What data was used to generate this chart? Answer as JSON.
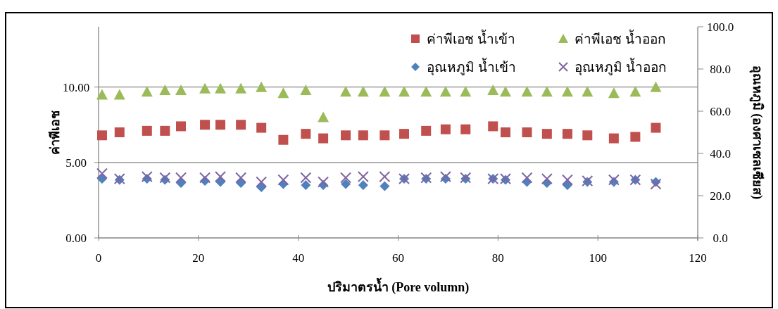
{
  "chart_data": {
    "type": "scatter",
    "xlabel": "ปริมาตรน้ำ (Pore volumn)",
    "ylabel": "ค่าพีเอช",
    "y2label": "อุณหภูมิ (องศาเซลเซียส)",
    "x": [
      0.7,
      4.2,
      9.7,
      13.3,
      16.5,
      21.3,
      24.4,
      28.5,
      32.6,
      37.0,
      41.5,
      45.0,
      49.5,
      53.0,
      57.3,
      61.2,
      65.6,
      69.5,
      73.5,
      79.0,
      81.5,
      85.8,
      89.8,
      93.9,
      97.9,
      103.2,
      107.5,
      111.6
    ],
    "xlim": [
      0,
      120
    ],
    "xticks": [
      0,
      20,
      40,
      60,
      80,
      100,
      120
    ],
    "ylim": [
      0,
      14
    ],
    "yticks": [
      {
        "value": 0,
        "label": "0.00"
      },
      {
        "value": 5,
        "label": "5.00"
      },
      {
        "value": 10,
        "label": "10.00"
      }
    ],
    "y2lim": [
      0,
      100
    ],
    "y2ticks": [
      {
        "value": 0,
        "label": "0.0"
      },
      {
        "value": 20,
        "label": "20.0"
      },
      {
        "value": 40,
        "label": "40.0"
      },
      {
        "value": 60,
        "label": "60.0"
      },
      {
        "value": 80,
        "label": "80.0"
      },
      {
        "value": 100,
        "label": "100.0"
      }
    ],
    "grid": "y",
    "legend": "top right",
    "series": [
      {
        "name": "ค่าพีเอช น้ำเข้า",
        "color": "#c0504d",
        "marker": "square",
        "values": [
          6.8,
          7.0,
          7.1,
          7.1,
          7.4,
          7.5,
          7.5,
          7.5,
          7.3,
          6.5,
          6.9,
          6.6,
          6.8,
          6.8,
          6.8,
          6.9,
          7.1,
          7.2,
          7.2,
          7.4,
          7.0,
          7.0,
          6.9,
          6.9,
          6.8,
          6.6,
          6.7,
          7.3
        ]
      },
      {
        "name": "ค่าพีเอช น้ำออก",
        "color": "#9bbb59",
        "marker": "triangle",
        "values": [
          9.5,
          9.5,
          9.7,
          9.8,
          9.8,
          9.9,
          9.9,
          9.9,
          10.0,
          9.6,
          9.8,
          8.0,
          9.7,
          9.7,
          9.7,
          9.7,
          9.7,
          9.7,
          9.7,
          9.8,
          9.7,
          9.7,
          9.7,
          9.7,
          9.7,
          9.6,
          9.7,
          10.0
        ]
      },
      {
        "name": "อุณหภูมิ น้ำเข้า",
        "color": "#4f81bd",
        "marker": "diamond",
        "axis": "y2",
        "values": [
          28,
          27.5,
          28,
          27.5,
          26,
          27,
          26.5,
          26,
          24,
          25.5,
          25,
          25,
          25.5,
          25,
          24.5,
          28,
          28,
          28,
          28,
          28,
          27.5,
          26.5,
          26,
          25,
          26.5,
          26.5,
          27.5,
          26.5
        ]
      },
      {
        "name": "อุณหภูมิ น้ำออก",
        "color": "#8064a2",
        "marker": "cross",
        "axis": "y2",
        "values": [
          30.5,
          28,
          29,
          28.5,
          28.5,
          28.5,
          29,
          28.5,
          26.5,
          27.5,
          28.5,
          26.5,
          28.5,
          29,
          29,
          28,
          28.5,
          29,
          28.5,
          28,
          28,
          28.5,
          28,
          27.5,
          27,
          27.5,
          27.5,
          25.5
        ]
      }
    ]
  }
}
